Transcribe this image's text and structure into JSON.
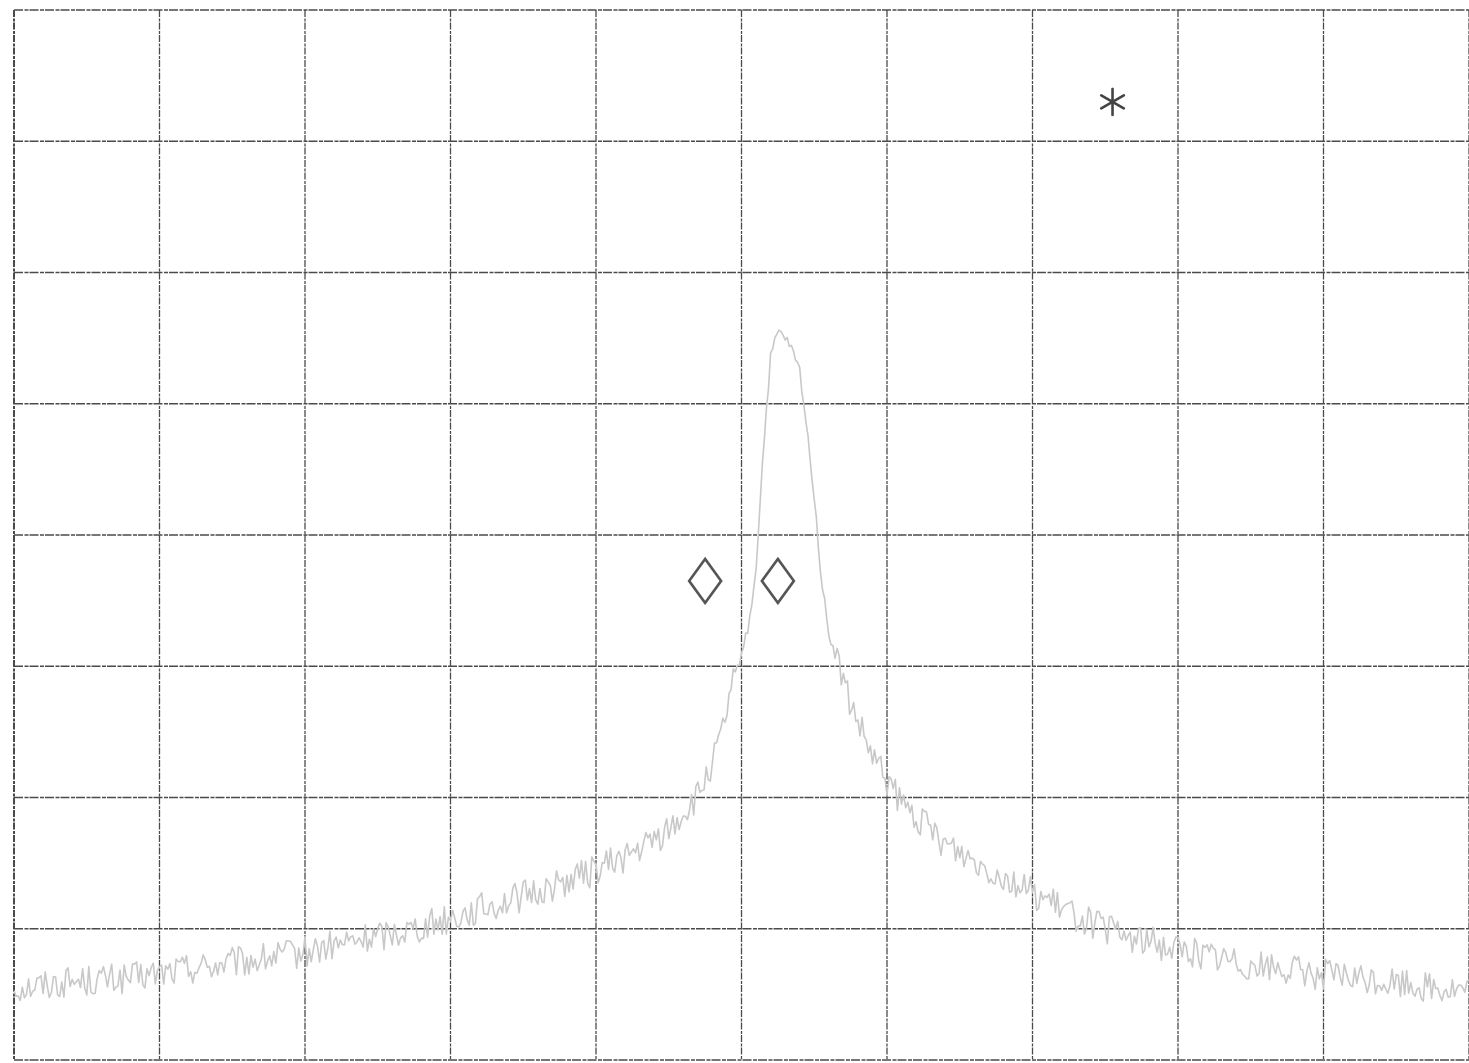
{
  "chart_data": {
    "type": "line",
    "title": "",
    "xlabel": "",
    "ylabel": "",
    "grid": true,
    "x_divisions": 10,
    "y_divisions": 8,
    "xlim": [
      0,
      10
    ],
    "ylim": [
      0,
      8
    ],
    "series": [
      {
        "color": "#c8c8c8",
        "points": [
          [
            0.0,
            0.55
          ],
          [
            0.4,
            0.6
          ],
          [
            0.8,
            0.62
          ],
          [
            1.2,
            0.7
          ],
          [
            1.6,
            0.75
          ],
          [
            2.0,
            0.82
          ],
          [
            2.4,
            0.92
          ],
          [
            2.8,
            1.02
          ],
          [
            3.2,
            1.15
          ],
          [
            3.6,
            1.28
          ],
          [
            4.0,
            1.45
          ],
          [
            4.3,
            1.6
          ],
          [
            4.5,
            1.75
          ],
          [
            4.7,
            2.0
          ],
          [
            4.85,
            2.4
          ],
          [
            4.95,
            2.9
          ],
          [
            5.05,
            3.3
          ],
          [
            5.1,
            3.75
          ],
          [
            5.15,
            4.65
          ],
          [
            5.2,
            5.35
          ],
          [
            5.25,
            5.55
          ],
          [
            5.3,
            5.5
          ],
          [
            5.35,
            5.4
          ],
          [
            5.4,
            5.25
          ],
          [
            5.45,
            4.8
          ],
          [
            5.5,
            4.3
          ],
          [
            5.55,
            3.65
          ],
          [
            5.6,
            3.25
          ],
          [
            5.75,
            2.7
          ],
          [
            5.9,
            2.3
          ],
          [
            6.1,
            1.95
          ],
          [
            6.4,
            1.65
          ],
          [
            6.8,
            1.4
          ],
          [
            7.2,
            1.15
          ],
          [
            7.6,
            0.95
          ],
          [
            8.0,
            0.85
          ],
          [
            8.4,
            0.75
          ],
          [
            8.8,
            0.68
          ],
          [
            9.2,
            0.62
          ],
          [
            9.6,
            0.58
          ],
          [
            10.0,
            0.52
          ]
        ]
      }
    ],
    "markers": [
      {
        "symbol": "diamond",
        "x": 4.75,
        "y": 3.65
      },
      {
        "symbol": "diamond",
        "x": 5.25,
        "y": 3.65
      },
      {
        "symbol": "asterisk",
        "x": 7.55,
        "y": 7.3
      }
    ]
  }
}
